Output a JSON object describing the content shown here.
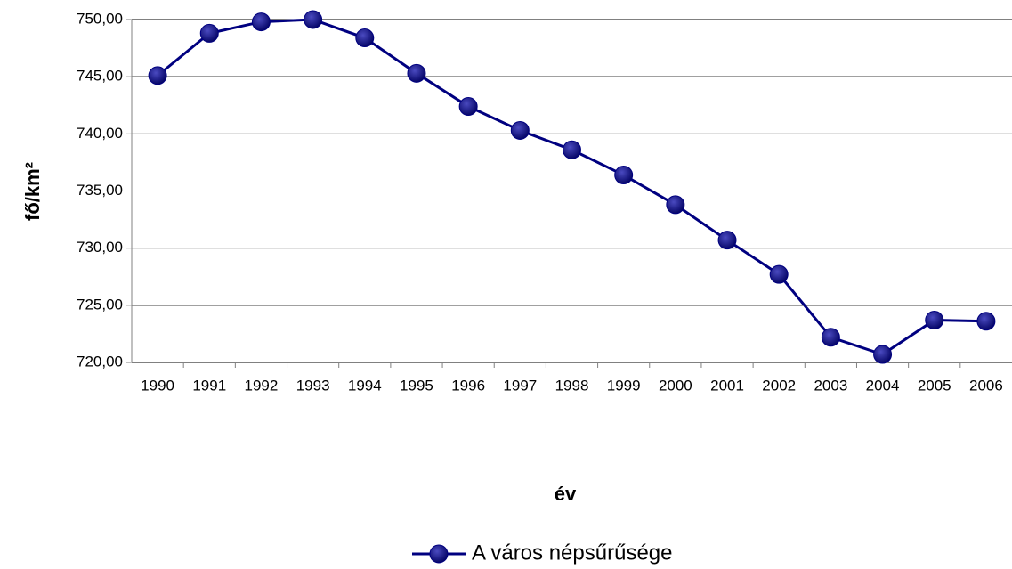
{
  "chart_data": {
    "type": "line",
    "x_label": "év",
    "y_label": "fő/km²",
    "categories": [
      "1990",
      "1991",
      "1992",
      "1993",
      "1994",
      "1995",
      "1996",
      "1997",
      "1998",
      "1999",
      "2000",
      "2001",
      "2002",
      "2003",
      "2004",
      "2005",
      "2006"
    ],
    "series": [
      {
        "name": "A város népsűrűsége",
        "color": "#000080",
        "values": [
          745.1,
          748.8,
          749.8,
          750.0,
          748.4,
          745.3,
          742.4,
          740.3,
          738.6,
          736.4,
          733.8,
          730.7,
          727.7,
          722.2,
          720.7,
          723.7,
          723.6
        ]
      }
    ],
    "ylim": [
      720,
      750
    ],
    "yticks": [
      {
        "value": 720,
        "label": "720,00"
      },
      {
        "value": 725,
        "label": "725,00"
      },
      {
        "value": 730,
        "label": "730,00"
      },
      {
        "value": 735,
        "label": "735,00"
      },
      {
        "value": 740,
        "label": "740,00"
      },
      {
        "value": 745,
        "label": "745,00"
      },
      {
        "value": 750,
        "label": "750,00"
      }
    ],
    "grid": true,
    "legend": "bottom"
  }
}
